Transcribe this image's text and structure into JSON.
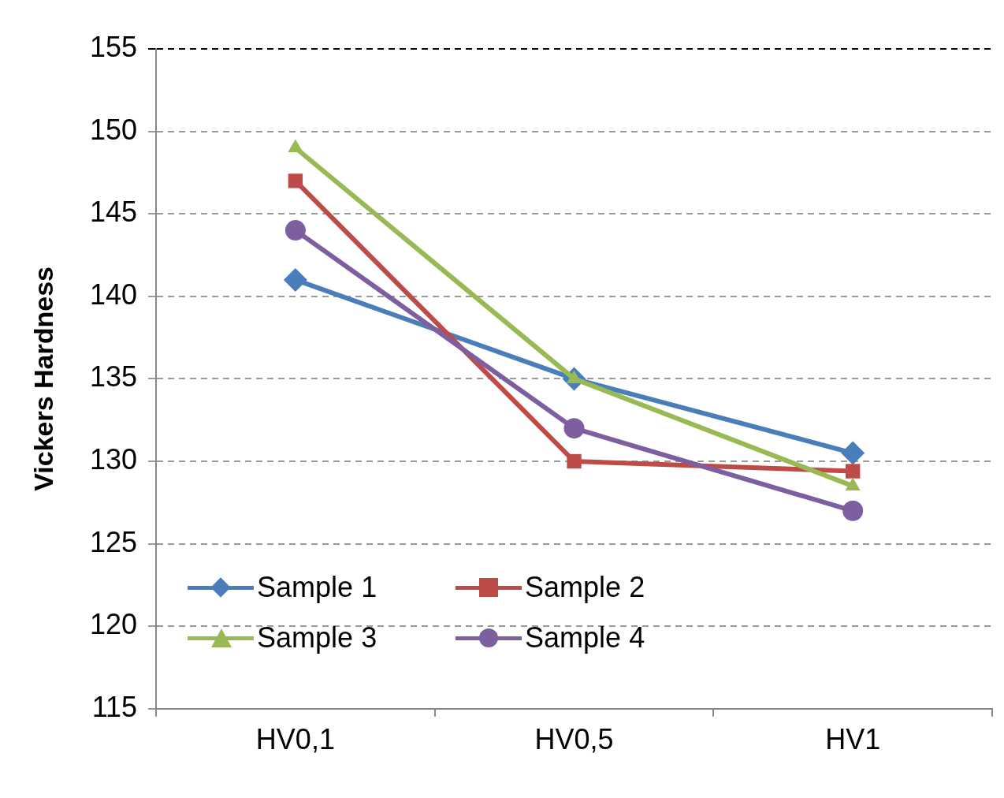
{
  "chart_data": {
    "type": "line",
    "ylabel": "Vickers Hardness",
    "categories": [
      "HV0,1",
      "HV0,5",
      "HV1"
    ],
    "series": [
      {
        "name": "Sample 1",
        "color": "#4a7ebb",
        "marker": "diamond",
        "values": [
          141,
          135,
          130.5
        ]
      },
      {
        "name": "Sample 2",
        "color": "#be4b48",
        "marker": "square",
        "values": [
          147,
          130,
          129.4
        ]
      },
      {
        "name": "Sample 3",
        "color": "#98b954",
        "marker": "triangle",
        "values": [
          149,
          135,
          128.5
        ]
      },
      {
        "name": "Sample 4",
        "color": "#7d5fa0",
        "marker": "circle",
        "values": [
          144,
          132,
          127
        ]
      }
    ],
    "ylim": [
      115,
      155
    ],
    "yticks": [
      115,
      120,
      125,
      130,
      135,
      140,
      145,
      150,
      155
    ],
    "grid": "y",
    "legend": "bottom left",
    "line_style": "solid"
  }
}
